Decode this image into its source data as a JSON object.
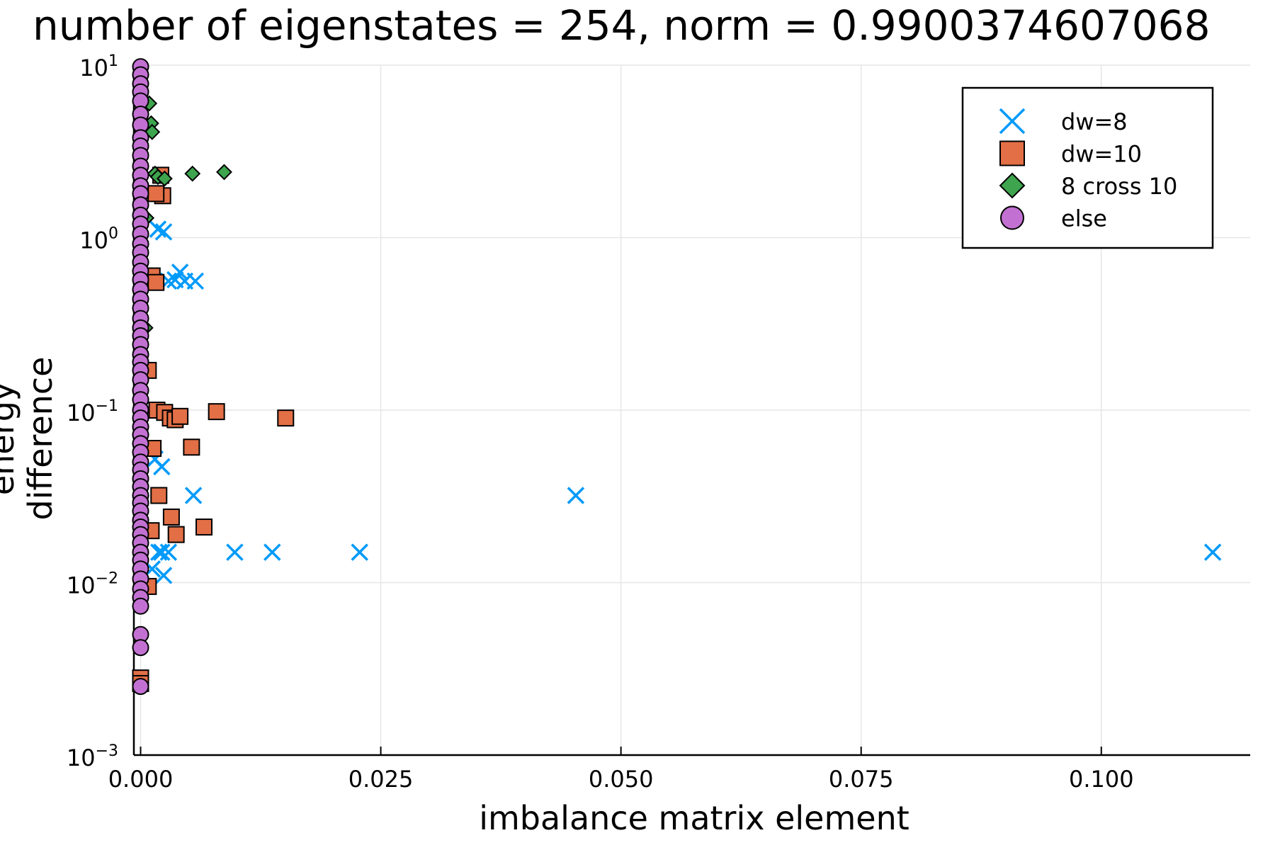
{
  "chart_data": {
    "type": "scatter",
    "title": "number of eigenstates = 254, norm = 0.9900374607068",
    "xlabel": "imbalance matrix element",
    "ylabel": "energy difference",
    "xlim": [
      -0.0007,
      0.1155
    ],
    "ylim": [
      0.001,
      10
    ],
    "yscale": "log",
    "grid": true,
    "legend_position": "top-right",
    "x_ticks": [
      {
        "value": 0.0,
        "label": "0.000"
      },
      {
        "value": 0.025,
        "label": "0.025"
      },
      {
        "value": 0.05,
        "label": "0.050"
      },
      {
        "value": 0.075,
        "label": "0.075"
      },
      {
        "value": 0.1,
        "label": "0.100"
      }
    ],
    "y_ticks": [
      {
        "value": 10,
        "base": "10",
        "exp": "1"
      },
      {
        "value": 1,
        "base": "10",
        "exp": "0"
      },
      {
        "value": 0.1,
        "base": "10",
        "exp": "−1"
      },
      {
        "value": 0.01,
        "base": "10",
        "exp": "−2"
      },
      {
        "value": 0.001,
        "base": "10",
        "exp": "−3"
      }
    ],
    "series": [
      {
        "name": "dw=8",
        "marker": "x",
        "color": "#009AFA",
        "points": [
          [
            0.0018,
            1.12
          ],
          [
            0.0024,
            1.08
          ],
          [
            0.0029,
            0.56
          ],
          [
            0.0036,
            0.57
          ],
          [
            0.0041,
            0.63
          ],
          [
            0.0046,
            0.56
          ],
          [
            0.0057,
            0.56
          ],
          [
            0.0022,
            0.047
          ],
          [
            0.0055,
            0.032
          ],
          [
            0.0453,
            0.032
          ],
          [
            0.0019,
            0.015
          ],
          [
            0.0022,
            0.015
          ],
          [
            0.0029,
            0.015
          ],
          [
            0.0098,
            0.015
          ],
          [
            0.0137,
            0.015
          ],
          [
            0.0228,
            0.015
          ],
          [
            0.1116,
            0.015
          ],
          [
            0.0024,
            0.011
          ],
          [
            0.0012,
            0.012
          ],
          [
            0.0015,
            0.052
          ]
        ]
      },
      {
        "name": "dw=10",
        "marker": "square",
        "color": "#E26F46",
        "points": [
          [
            0.0021,
            2.3
          ],
          [
            0.0023,
            1.75
          ],
          [
            0.0016,
            1.8
          ],
          [
            0.0012,
            0.6
          ],
          [
            0.0016,
            0.55
          ],
          [
            0.0017,
            0.1
          ],
          [
            0.0025,
            0.097
          ],
          [
            0.0031,
            0.09
          ],
          [
            0.0036,
            0.088
          ],
          [
            0.0041,
            0.092
          ],
          [
            0.0079,
            0.098
          ],
          [
            0.0151,
            0.09
          ],
          [
            0.0013,
            0.06
          ],
          [
            0.0053,
            0.061
          ],
          [
            0.0019,
            0.032
          ],
          [
            0.0032,
            0.024
          ],
          [
            0.0037,
            0.019
          ],
          [
            0.0066,
            0.021
          ],
          [
            0.0011,
            0.02
          ],
          [
            0.0008,
            0.0095
          ],
          [
            0.0,
            0.0028
          ],
          [
            0.0,
            0.0026
          ],
          [
            0.0008,
            0.17
          ]
        ]
      },
      {
        "name": "8 cross 10",
        "marker": "diamond",
        "color": "#3EA44E",
        "points": [
          [
            0.0009,
            6.0
          ],
          [
            0.0011,
            4.6
          ],
          [
            0.0012,
            4.1
          ],
          [
            0.0015,
            2.35
          ],
          [
            0.0018,
            2.25
          ],
          [
            0.0025,
            2.2
          ],
          [
            0.0054,
            2.35
          ],
          [
            0.0087,
            2.4
          ],
          [
            0.0006,
            1.3
          ],
          [
            0.0005,
            0.3
          ]
        ]
      },
      {
        "name": "else",
        "marker": "circle",
        "color": "#C271D2",
        "points": [
          [
            0.0,
            9.8
          ],
          [
            0.0,
            8.8
          ],
          [
            0.0,
            7.8
          ],
          [
            0.0,
            7.0
          ],
          [
            0.0,
            6.2
          ],
          [
            0.0,
            5.2
          ],
          [
            0.0,
            4.5
          ],
          [
            0.0,
            3.8
          ],
          [
            0.0,
            3.4
          ],
          [
            0.0,
            3.0
          ],
          [
            0.0,
            2.6
          ],
          [
            0.0,
            2.3
          ],
          [
            0.0,
            2.0
          ],
          [
            0.0,
            1.8
          ],
          [
            0.0,
            1.55
          ],
          [
            0.0,
            1.35
          ],
          [
            0.0,
            1.2
          ],
          [
            0.0,
            1.05
          ],
          [
            0.0,
            0.92
          ],
          [
            0.0,
            0.82
          ],
          [
            0.0,
            0.72
          ],
          [
            0.0,
            0.64
          ],
          [
            0.0,
            0.57
          ],
          [
            0.0,
            0.5
          ],
          [
            0.0,
            0.44
          ],
          [
            0.0,
            0.39
          ],
          [
            0.0,
            0.34
          ],
          [
            0.0,
            0.3
          ],
          [
            0.0,
            0.27
          ],
          [
            0.0,
            0.24
          ],
          [
            0.0,
            0.21
          ],
          [
            0.0,
            0.19
          ],
          [
            0.0,
            0.17
          ],
          [
            0.0,
            0.15
          ],
          [
            0.0,
            0.13
          ],
          [
            0.0,
            0.115
          ],
          [
            0.0,
            0.1
          ],
          [
            0.0,
            0.09
          ],
          [
            0.0,
            0.08
          ],
          [
            0.0,
            0.072
          ],
          [
            0.0,
            0.064
          ],
          [
            0.0,
            0.057
          ],
          [
            0.0,
            0.05
          ],
          [
            0.0,
            0.045
          ],
          [
            0.0,
            0.04
          ],
          [
            0.0,
            0.036
          ],
          [
            0.0,
            0.032
          ],
          [
            0.0,
            0.029
          ],
          [
            0.0,
            0.026
          ],
          [
            0.0,
            0.023
          ],
          [
            0.0,
            0.021
          ],
          [
            0.0,
            0.019
          ],
          [
            0.0,
            0.017
          ],
          [
            0.0,
            0.015
          ],
          [
            0.0,
            0.0135
          ],
          [
            0.0,
            0.012
          ],
          [
            0.0,
            0.0105
          ],
          [
            0.0,
            0.0092
          ],
          [
            0.0,
            0.0082
          ],
          [
            0.0,
            0.0073
          ],
          [
            0.0,
            0.005
          ],
          [
            0.0,
            0.0042
          ],
          [
            0.0,
            0.0025
          ]
        ]
      }
    ]
  }
}
